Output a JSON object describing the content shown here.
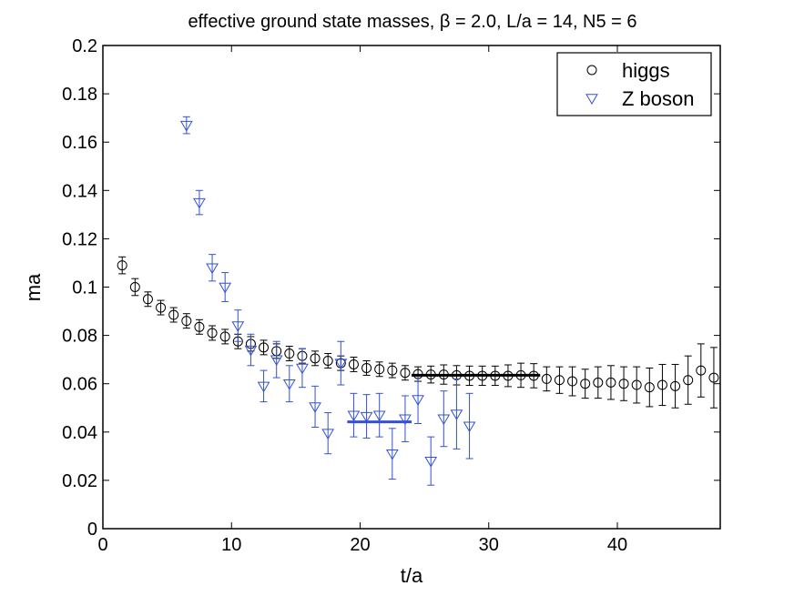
{
  "chart_data": {
    "type": "scatter",
    "title": "effective ground state masses, β = 2.0, L/a = 14, N5 = 6",
    "xlabel": "t/a",
    "ylabel": "ma",
    "xlim": [
      0,
      48
    ],
    "ylim": [
      0,
      0.2
    ],
    "xticks": [
      0,
      10,
      20,
      30,
      40
    ],
    "xtick_labels": [
      "0",
      "10",
      "20",
      "30",
      "40"
    ],
    "yticks": [
      0,
      0.02,
      0.04,
      0.06,
      0.08,
      0.1,
      0.12,
      0.14,
      0.16,
      0.18,
      0.2
    ],
    "ytick_labels": [
      "0",
      "0.02",
      "0.04",
      "0.06",
      "0.08",
      "0.1",
      "0.12",
      "0.14",
      "0.16",
      "0.18",
      "0.2"
    ],
    "grid": false,
    "legend_position": "top-right",
    "series": [
      {
        "name": "higgs",
        "marker": "circle",
        "color": "#000000",
        "x": [
          1.5,
          2.5,
          3.5,
          4.5,
          5.5,
          6.5,
          7.5,
          8.5,
          9.5,
          10.5,
          11.5,
          12.5,
          13.5,
          14.5,
          15.5,
          16.5,
          17.5,
          18.5,
          19.5,
          20.5,
          21.5,
          22.5,
          23.5,
          24.5,
          25.5,
          26.5,
          27.5,
          28.5,
          29.5,
          30.5,
          31.5,
          32.5,
          33.5,
          34.5,
          35.5,
          36.5,
          37.5,
          38.5,
          39.5,
          40.5,
          41.5,
          42.5,
          43.5,
          44.5,
          45.5,
          46.5,
          47.5
        ],
        "y": [
          0.109,
          0.1,
          0.095,
          0.0915,
          0.0885,
          0.086,
          0.0835,
          0.081,
          0.0795,
          0.0775,
          0.0765,
          0.075,
          0.0735,
          0.0725,
          0.0715,
          0.0705,
          0.0695,
          0.0685,
          0.068,
          0.0665,
          0.066,
          0.0655,
          0.0645,
          0.064,
          0.0638,
          0.0638,
          0.0635,
          0.0633,
          0.0633,
          0.0633,
          0.0633,
          0.0635,
          0.0633,
          0.062,
          0.0615,
          0.061,
          0.06,
          0.0605,
          0.0605,
          0.06,
          0.0595,
          0.0585,
          0.0595,
          0.059,
          0.0615,
          0.0655,
          0.0625
        ],
        "err": [
          0.0035,
          0.0035,
          0.003,
          0.003,
          0.003,
          0.003,
          0.003,
          0.003,
          0.003,
          0.003,
          0.003,
          0.003,
          0.003,
          0.003,
          0.003,
          0.003,
          0.003,
          0.003,
          0.003,
          0.003,
          0.003,
          0.003,
          0.003,
          0.003,
          0.0035,
          0.004,
          0.004,
          0.004,
          0.004,
          0.004,
          0.0045,
          0.005,
          0.005,
          0.005,
          0.0055,
          0.006,
          0.006,
          0.0065,
          0.007,
          0.007,
          0.0075,
          0.008,
          0.0085,
          0.009,
          0.01,
          0.011,
          0.0125
        ]
      },
      {
        "name": "Z boson",
        "marker": "triangle-down",
        "color": "#3350d8",
        "x": [
          6.5,
          7.5,
          8.5,
          9.5,
          10.5,
          11.5,
          12.5,
          13.5,
          14.5,
          15.5,
          16.5,
          17.5,
          18.5,
          19.5,
          20.5,
          21.5,
          22.5,
          23.5,
          24.5,
          25.5,
          26.5,
          27.5,
          28.5
        ],
        "y": [
          0.167,
          0.135,
          0.108,
          0.1,
          0.084,
          0.074,
          0.059,
          0.07,
          0.06,
          0.0665,
          0.0505,
          0.0395,
          0.0685,
          0.047,
          0.0465,
          0.047,
          0.031,
          0.0455,
          0.0535,
          0.028,
          0.0455,
          0.0475,
          0.0425
        ],
        "err": [
          0.0035,
          0.005,
          0.0055,
          0.006,
          0.0065,
          0.0065,
          0.0065,
          0.0075,
          0.0075,
          0.008,
          0.0085,
          0.0085,
          0.009,
          0.009,
          0.009,
          0.009,
          0.0105,
          0.0095,
          0.01,
          0.01,
          0.0115,
          0.0145,
          0.0135
        ]
      }
    ],
    "fit_lines": [
      {
        "series": "higgs",
        "x_start": 24,
        "x_end": 34,
        "value": 0.0635,
        "color": "#000000"
      },
      {
        "series": "Z boson",
        "x_start": 19,
        "x_end": 24,
        "value": 0.0442,
        "color": "#3350d8"
      }
    ]
  }
}
